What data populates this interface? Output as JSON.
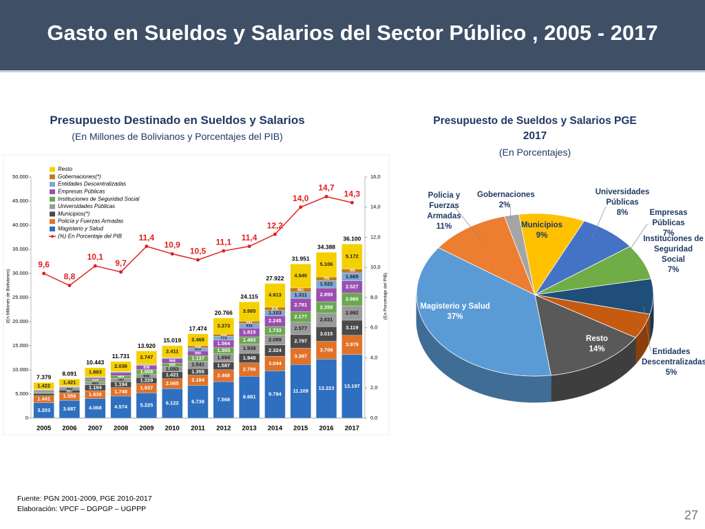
{
  "header": {
    "title": "Gasto en Sueldos y Salarios del Sector Público , 2005 - 2017"
  },
  "chart_data": [
    {
      "type": "bar",
      "stacked": true,
      "title": "Presupuesto Destinado en Sueldos y Salarios",
      "subtitle": "(En Millones de Bolivianos y Porcentajes del PIB)",
      "ylabel": "(En Millones de Bolivianos)",
      "y2label": "(En Porcentaje del PIB)",
      "categories": [
        "2005",
        "2006",
        "2007",
        "2008",
        "2009",
        "2010",
        "2011",
        "2012",
        "2013",
        "2014",
        "2015",
        "2016",
        "2017"
      ],
      "ylim": [
        0,
        50000
      ],
      "yticks": [
        0,
        {
          "value": 5000,
          "label": "5.000"
        },
        {
          "value": 10000,
          "label": "10.000"
        },
        {
          "value": 15000,
          "label": "15.000"
        },
        {
          "value": 20000,
          "label": "20.000"
        },
        {
          "value": 25000,
          "label": "25.000"
        },
        {
          "value": 30000,
          "label": "30.000"
        },
        {
          "value": 35000,
          "label": "35.000"
        },
        {
          "value": 40000,
          "label": "40.000"
        },
        {
          "value": 45000,
          "label": "45.000"
        },
        {
          "value": 50000,
          "label": "50.000"
        }
      ],
      "y2lim": [
        0,
        16
      ],
      "y2ticks": [
        {
          "value": 0,
          "label": "0,0"
        },
        {
          "value": 2,
          "label": "2,0"
        },
        {
          "value": 4,
          "label": "4,0"
        },
        {
          "value": 6,
          "label": "6,0"
        },
        {
          "value": 8,
          "label": "8,0"
        },
        {
          "value": 10,
          "label": "10,0"
        },
        {
          "value": 12,
          "label": "12,0"
        },
        {
          "value": 14,
          "label": "14,0"
        },
        {
          "value": 16,
          "label": "16,0"
        }
      ],
      "series": [
        {
          "name": "Magisterio y Salud",
          "color": "#2e6fbf",
          "values": [
            3203,
            3687,
            4068,
            4574,
            5225,
            6122,
            6738,
            7568,
            8681,
            9794,
            11109,
            12223,
            13197
          ],
          "value_labels": [
            "3.203",
            "3.687",
            "4.068",
            "4.574",
            "5.225",
            "6.122",
            "6.738",
            "7.568",
            "8.681",
            "9.794",
            "11.109",
            "12.223",
            "13.197"
          ]
        },
        {
          "name": "Policía y Fuerzas Armadas",
          "color": "#e0722a",
          "values": [
            1441,
            1559,
            1639,
            1748,
            1937,
            2065,
            2184,
            2468,
            2798,
            3044,
            3397,
            3709,
            3979
          ],
          "value_labels": [
            "1.441",
            "1.559",
            "1.639",
            "1.748",
            "1.937",
            "2.065",
            "2.184",
            "2.468",
            "2.798",
            "3.044",
            "3.397",
            "3.709",
            "3.979"
          ]
        },
        {
          "name": "Municipios(*)",
          "color": "#4a4a4a",
          "values": [
            470,
            567,
            1194,
            1194,
            1229,
            1421,
            1355,
            1587,
            1948,
            2324,
            2797,
            3015,
            3119
          ],
          "value_labels": [
            null,
            "567",
            "1.194",
            "1.194",
            "1.229",
            "1.421",
            "1.355",
            "1.587",
            "1.948",
            "2.324",
            "2.797",
            "3.015",
            "3.119"
          ]
        },
        {
          "name": "Universidades Públicas",
          "color": "#9a9a9a",
          "values": [
            267,
            502,
            663,
            747,
            656,
            1083,
            1541,
            1694,
            1938,
            2089,
            2577,
            2831,
            2992
          ],
          "value_labels": [
            null,
            "502",
            "663",
            "747",
            "656",
            "1.083",
            "1.541",
            "1.694",
            "1.938",
            "2.089",
            "2.577",
            "2.831",
            "2.992"
          ]
        },
        {
          "name": "Instituciones de Seguridad Social",
          "color": "#6aa84f",
          "values": [
            270,
            150,
            519,
            569,
            1008,
            680,
            1137,
            1303,
            1493,
            1733,
            2177,
            2358,
            2665
          ],
          "value_labels": [
            null,
            null,
            "519",
            "569",
            "1.008",
            "680",
            "1.137",
            "1.303",
            "1.493",
            "1.733",
            "2.177",
            "2.358",
            "2.665"
          ]
        },
        {
          "name": "Empresas Públicas",
          "color": "#9b4fb0",
          "values": [
            186,
            105,
            300,
            600,
            836,
            968,
            990,
            1564,
            1815,
            2245,
            2781,
            2859,
            2527
          ],
          "value_labels": [
            null,
            null,
            null,
            null,
            "836",
            "968",
            "990",
            "1.564",
            "1.815",
            "2.245",
            "2.781",
            "2.859",
            "2.527"
          ]
        },
        {
          "name": "Entidades Descentralizadas",
          "color": "#7fa7d8",
          "values": [
            70,
            60,
            110,
            170,
            180,
            170,
            623,
            773,
            915,
            1103,
            1311,
            1522,
            1665
          ],
          "value_labels": [
            null,
            null,
            null,
            null,
            null,
            null,
            "623",
            "773",
            "915",
            "1.103",
            "1.311",
            "1.522",
            "1.665"
          ]
        },
        {
          "name": "Gobernaciones(*)",
          "color": "#c07a1a",
          "values": [
            50,
            40,
            67,
            93,
            102,
            99,
            438,
            436,
            541,
            676,
            861,
            765,
            785
          ],
          "value_labels": [
            null,
            null,
            null,
            null,
            null,
            null,
            "438",
            "436",
            "541",
            "676",
            "861",
            "765",
            "785"
          ]
        },
        {
          "name": "Resto",
          "color": "#f5d000",
          "values": [
            1422,
            1421,
            1883,
            2036,
            2747,
            2411,
            2468,
            3373,
            3985,
            4913,
            4940,
            5106,
            5172
          ],
          "value_labels": [
            "1.422",
            "1.421",
            "1.883",
            "2.036",
            "2.747",
            "2.411",
            "2.468",
            "3.373",
            "3.985",
            "4.913",
            "4.940",
            "5.106",
            "5.172"
          ]
        },
        {
          "name": "(%) En Porcentaje del PIB",
          "color": "#e02020",
          "axis": "y2",
          "type": "line",
          "values": [
            9.6,
            8.8,
            10.1,
            9.7,
            11.4,
            10.9,
            10.5,
            11.1,
            11.4,
            12.2,
            14.0,
            14.7,
            14.3
          ],
          "value_labels": [
            "9,6",
            "8,8",
            "10,1",
            "9,7",
            "11,4",
            "10,9",
            "10,5",
            "11,1",
            "11,4",
            "12,2",
            "14,0",
            "14,7",
            "14,3"
          ]
        }
      ],
      "totals": {
        "values": [
          7379,
          8091,
          10443,
          11731,
          13920,
          15019,
          17474,
          20766,
          24115,
          27922,
          31951,
          34388,
          36100
        ],
        "value_labels": [
          "7.379",
          "8.091",
          "10.443",
          "11.731",
          "13.920",
          "15.019",
          "17.474",
          "20.766",
          "24.115",
          "27.922",
          "31.951",
          "34.388",
          "36.100"
        ]
      }
    },
    {
      "type": "pie",
      "title": "Presupuesto de Sueldos y Salarios PGE 2017",
      "subtitle": "(En Porcentajes)",
      "categories": [
        "Gobernaciones",
        "Municipios",
        "Universidades Públicas",
        "Empresas Públicas",
        "Instituciones de Seguridad Social",
        "Entidades Descentralizadas",
        "Resto",
        "Magisterio y Salud",
        "Policia y Fuerzas Armadas"
      ],
      "values": [
        2,
        9,
        8,
        7,
        7,
        5,
        14,
        37,
        11
      ],
      "value_labels": [
        "2%",
        "9%",
        "8%",
        "7%",
        "7%",
        "5%",
        "14%",
        "37%",
        "11%"
      ],
      "colors": [
        "#a5a5a5",
        "#ffc000",
        "#4472c4",
        "#70ad47",
        "#1f4e79",
        "#c55a11",
        "#595959",
        "#5b9bd5",
        "#ed7d31"
      ]
    }
  ],
  "footer": {
    "source": "Fuente: PGN 2001-2009, PGE 2010-2017",
    "credit": "Elaboración: VPCF – DGPGP – UGPPP",
    "page": "27"
  }
}
